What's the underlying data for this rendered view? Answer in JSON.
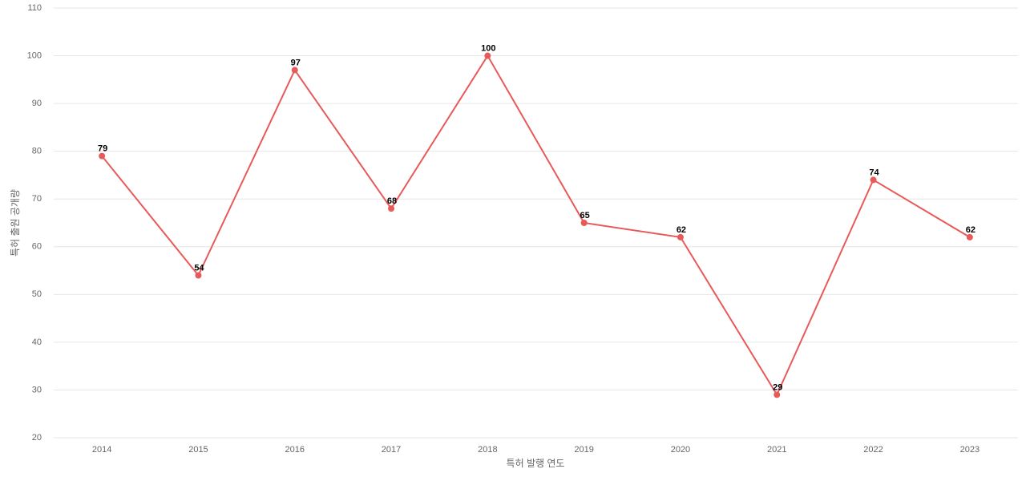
{
  "chart_data": {
    "type": "line",
    "x_label": "특허 발행 연도",
    "y_label": "특허 출원 공개량",
    "categories": [
      "2014",
      "2015",
      "2016",
      "2017",
      "2018",
      "2019",
      "2020",
      "2021",
      "2022",
      "2023"
    ],
    "series": [
      {
        "color": "#e85a5a",
        "values": [
          79,
          54,
          97,
          68,
          100,
          65,
          62,
          29,
          74,
          62
        ]
      }
    ],
    "ylim": [
      20,
      110
    ],
    "yticks": [
      20,
      30,
      40,
      50,
      60,
      70,
      80,
      90,
      100,
      110
    ],
    "grid": true
  }
}
